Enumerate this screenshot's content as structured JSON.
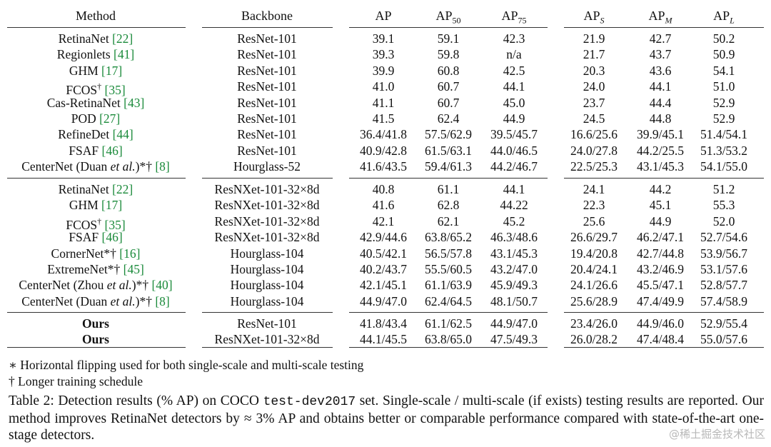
{
  "headers": {
    "method": "Method",
    "backbone": "Backbone",
    "ap": "AP",
    "ap50": [
      "AP",
      "50"
    ],
    "ap75": [
      "AP",
      "75"
    ],
    "aps": [
      "AP",
      "S"
    ],
    "apm": [
      "AP",
      "M"
    ],
    "apl": [
      "AP",
      "L"
    ]
  },
  "groups": [
    [
      {
        "name": "RetinaNet ",
        "sup": "",
        "ref": "[22]",
        "backbone": "ResNet-101",
        "v": [
          "39.1",
          "59.1",
          "42.3",
          "21.9",
          "42.7",
          "50.2"
        ]
      },
      {
        "name": "Regionlets ",
        "sup": "",
        "ref": "[41]",
        "backbone": "ResNet-101",
        "v": [
          "39.3",
          "59.8",
          "n/a",
          "21.7",
          "43.7",
          "50.9"
        ]
      },
      {
        "name": "GHM ",
        "sup": "",
        "ref": "[17]",
        "backbone": "ResNet-101",
        "v": [
          "39.9",
          "60.8",
          "42.5",
          "20.3",
          "43.6",
          "54.1"
        ]
      },
      {
        "name": "FCOS",
        "sup": "†",
        "ref": " [35]",
        "backbone": "ResNet-101",
        "v": [
          "41.0",
          "60.7",
          "44.1",
          "24.0",
          "44.1",
          "51.0"
        ]
      },
      {
        "name": "Cas-RetinaNet ",
        "sup": "",
        "ref": "[43]",
        "backbone": "ResNet-101",
        "v": [
          "41.1",
          "60.7",
          "45.0",
          "23.7",
          "44.4",
          "52.9"
        ]
      },
      {
        "name": "POD ",
        "sup": "",
        "ref": "[27]",
        "backbone": "ResNet-101",
        "v": [
          "41.5",
          "62.4",
          "44.9",
          "24.5",
          "44.8",
          "52.9"
        ]
      },
      {
        "name": "RefineDet ",
        "sup": "",
        "ref": "[44]",
        "backbone": "ResNet-101",
        "v": [
          "36.4/41.8",
          "57.5/62.9",
          "39.5/45.7",
          "16.6/25.6",
          "39.9/45.1",
          "51.4/54.1"
        ]
      },
      {
        "name": "FSAF ",
        "sup": "",
        "ref": "[46]",
        "backbone": "ResNet-101",
        "v": [
          "40.9/42.8",
          "61.5/63.1",
          "44.0/46.5",
          "24.0/27.8",
          "44.2/25.5",
          "51.3/53.2"
        ]
      },
      {
        "name": "CenterNet (Duan et al.)*† ",
        "sup": "",
        "ref": "[8]",
        "backbone": "Hourglass-52",
        "v": [
          "41.6/43.5",
          "59.4/61.3",
          "44.2/46.7",
          "22.5/25.3",
          "43.1/45.3",
          "54.1/55.0"
        ]
      }
    ],
    [
      {
        "name": "RetinaNet ",
        "sup": "",
        "ref": "[22]",
        "backbone": "ResNXet-101-32×8d",
        "v": [
          "40.8",
          "61.1",
          "44.1",
          "24.1",
          "44.2",
          "51.2"
        ]
      },
      {
        "name": "GHM ",
        "sup": "",
        "ref": "[17]",
        "backbone": "ResNXet-101-32×8d",
        "v": [
          "41.6",
          "62.8",
          "44.22",
          "22.3",
          "45.1",
          "55.3"
        ]
      },
      {
        "name": "FCOS",
        "sup": "†",
        "ref": " [35]",
        "backbone": "ResNXet-101-32×8d",
        "v": [
          "42.1",
          "62.1",
          "45.2",
          "25.6",
          "44.9",
          "52.0"
        ]
      },
      {
        "name": "FSAF ",
        "sup": "",
        "ref": "[46]",
        "backbone": "ResNXet-101-32×8d",
        "v": [
          "42.9/44.6",
          "63.8/65.2",
          "46.3/48.6",
          "26.6/29.7",
          "46.2/47.1",
          "52.7/54.6"
        ]
      },
      {
        "name": "CornerNet*† ",
        "sup": "",
        "ref": "[16]",
        "backbone": "Hourglass-104",
        "v": [
          "40.5/42.1",
          "56.5/57.8",
          "43.1/45.3",
          "19.4/20.8",
          "42.7/44.8",
          "53.9/56.7"
        ]
      },
      {
        "name": "ExtremeNet*† ",
        "sup": "",
        "ref": "[45]",
        "backbone": "Hourglass-104",
        "v": [
          "40.2/43.7",
          "55.5/60.5",
          "43.2/47.0",
          "20.4/24.1",
          "43.2/46.9",
          "53.1/57.6"
        ]
      },
      {
        "name": "CenterNet (Zhou et al.)*† ",
        "sup": "",
        "ref": "[40]",
        "backbone": "Hourglass-104",
        "v": [
          "42.1/45.1",
          "61.1/63.9",
          "45.9/49.3",
          "24.1/26.6",
          "45.5/47.1",
          "52.8/57.7"
        ]
      },
      {
        "name": "CenterNet (Duan et al.)*† ",
        "sup": "",
        "ref": "[8]",
        "backbone": "Hourglass-104",
        "v": [
          "44.9/47.0",
          "62.4/64.5",
          "48.1/50.7",
          "25.6/28.9",
          "47.4/49.9",
          "57.4/58.9"
        ]
      }
    ],
    [
      {
        "name": "Ours",
        "sup": "",
        "ref": "",
        "backbone": "ResNet-101",
        "v": [
          "41.8/43.4",
          "61.1/62.5",
          "44.9/47.0",
          "23.4/26.0",
          "44.9/46.0",
          "52.9/55.4"
        ]
      },
      {
        "name": "Ours",
        "sup": "",
        "ref": "",
        "backbone": "ResNXet-101-32×8d",
        "v": [
          "44.1/45.5",
          "63.8/65.0",
          "47.5/49.3",
          "26.0/28.2",
          "47.4/48.4",
          "55.0/57.6"
        ]
      }
    ]
  ],
  "footnotes": [
    "∗ Horizontal flipping used for both single-scale and multi-scale testing",
    "† Longer training schedule"
  ],
  "caption": {
    "pre": "Table 2: Detection results (% AP) on COCO ",
    "code": "test-dev2017",
    "post": " set. Single-scale / multi-scale (if exists) testing results are reported. Our method improves RetinaNet detectors by ≈ 3% AP and obtains better or comparable performance compared with state-of-the-art one-stage detectors."
  },
  "watermark": "@稀土掘金技术社区"
}
